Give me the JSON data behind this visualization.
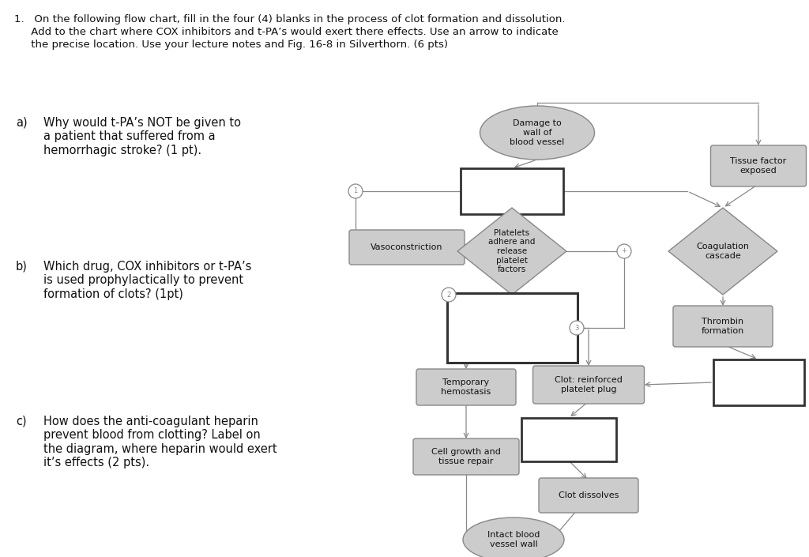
{
  "bg_color": "#ffffff",
  "node_fill_gray": "#cccccc",
  "node_fill_white": "#ffffff",
  "node_border_dark": "#333333",
  "node_border_gray": "#888888",
  "arrow_color": "#888888",
  "text_color": "#111111",
  "circle_fill": "#888888",
  "title_line1": "1.   On the following flow chart, fill in the four (4) blanks in the process of clot formation and dissolution.",
  "title_line2": "     Add to the chart where COX inhibitors and t-PA’s would exert there effects. Use an arrow to indicate",
  "title_line3": "     the precise location. Use your lecture notes and Fig. 16-8 in Silverthorn. (6 pts)",
  "qa_a_label": "a)",
  "qa_a_text": "Why would t-PA’s NOT be given to\na patient that suffered from a\nhemorrhagic stroke? (1 pt).",
  "qa_b_label": "b)",
  "qa_b_text": "Which drug, COX inhibitors or t-PA’s\nis used prophylactically to prevent\nformation of clots? (1pt)",
  "qa_c_label": "c)",
  "qa_c_text": "How does the anti-coagulant heparin\nprevent blood from clotting? Label on\nthe diagram, where heparin would exert\nit’s effects (2 pts).",
  "node_damage": "Damage to\nwall of\nblood vessel",
  "node_tissue": "Tissue factor\nexposed",
  "node_platelets": "Platelets\nadhere and\nrelease\nplatelet\nfactors",
  "node_vasoconstriction": "Vasoconstriction",
  "node_coagulation": "Coagulation\ncascade",
  "node_thrombin": "Thrombin\nformation",
  "node_temporary": "Temporary\nhemostasis",
  "node_clot_reinforced": "Clot: reinforced\nplatelet plug",
  "node_cell_growth": "Cell growth and\ntissue repair",
  "node_clot_dissolves": "Clot dissolves",
  "node_intact": "Intact blood\nvessel wall"
}
